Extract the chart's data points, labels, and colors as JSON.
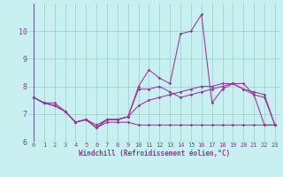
{
  "xlabel": "Windchill (Refroidissement éolien,°C)",
  "ylabel": "",
  "background_color": "#c8f0f0",
  "grid_color": "#99cccc",
  "line_color": "#993399",
  "xlim": [
    -0.5,
    23.5
  ],
  "ylim": [
    6.0,
    11.0
  ],
  "yticks": [
    6,
    7,
    8,
    9,
    10
  ],
  "xticks": [
    0,
    1,
    2,
    3,
    4,
    5,
    6,
    7,
    8,
    9,
    10,
    11,
    12,
    13,
    14,
    15,
    16,
    17,
    18,
    19,
    20,
    21,
    22,
    23
  ],
  "series1": [
    7.6,
    7.4,
    7.4,
    7.1,
    6.7,
    6.8,
    6.6,
    6.8,
    6.8,
    6.9,
    8.0,
    8.6,
    8.3,
    8.1,
    9.9,
    10.0,
    10.6,
    7.4,
    7.9,
    8.1,
    8.1,
    7.7,
    6.6,
    6.6
  ],
  "series2": [
    7.6,
    7.4,
    7.3,
    7.1,
    6.7,
    6.8,
    6.5,
    6.8,
    6.8,
    6.9,
    7.9,
    7.9,
    8.0,
    7.8,
    7.6,
    7.7,
    7.8,
    7.9,
    8.0,
    8.1,
    7.9,
    7.7,
    7.6,
    6.6
  ],
  "series3": [
    7.6,
    7.4,
    7.3,
    7.1,
    6.7,
    6.8,
    6.5,
    6.7,
    6.7,
    6.7,
    6.6,
    6.6,
    6.6,
    6.6,
    6.6,
    6.6,
    6.6,
    6.6,
    6.6,
    6.6,
    6.6,
    6.6,
    6.6,
    6.6
  ],
  "series4": [
    7.6,
    7.4,
    7.3,
    7.1,
    6.7,
    6.8,
    6.5,
    6.8,
    6.8,
    6.9,
    7.3,
    7.5,
    7.6,
    7.7,
    7.8,
    7.9,
    8.0,
    8.0,
    8.1,
    8.1,
    7.9,
    7.8,
    7.7,
    6.6
  ],
  "tick_fontsize": 5.0,
  "xlabel_fontsize": 5.5
}
